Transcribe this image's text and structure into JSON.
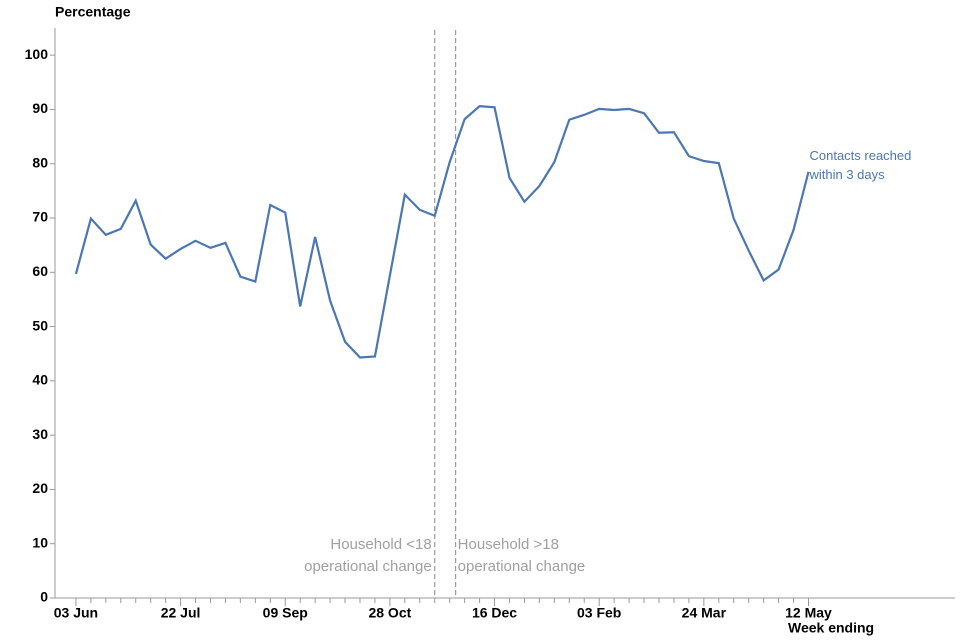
{
  "chart_data": {
    "type": "line",
    "y_label": "Percentage",
    "x_label": "Week ending",
    "categories": [
      "03 Jun",
      null,
      null,
      null,
      null,
      null,
      null,
      "22 Jul",
      null,
      null,
      null,
      null,
      null,
      null,
      "09 Sep",
      null,
      null,
      null,
      null,
      null,
      null,
      "28 Oct",
      null,
      null,
      null,
      null,
      null,
      null,
      "16 Dec",
      null,
      null,
      null,
      null,
      null,
      null,
      "03 Feb",
      null,
      null,
      null,
      null,
      null,
      null,
      "24 Mar",
      null,
      null,
      null,
      null,
      null,
      null,
      "12 May"
    ],
    "series": [
      {
        "name": "Contacts reached within 3 days",
        "color": "#4a77b4",
        "values": [
          59.7,
          69.9,
          66.9,
          68.0,
          73.2,
          65.1,
          62.5,
          64.3,
          65.8,
          64.5,
          65.4,
          59.2,
          58.3,
          72.4,
          71.0,
          53.7,
          66.5,
          54.8,
          47.2,
          44.3,
          44.5,
          59.4,
          74.3,
          71.5,
          70.4,
          80.3,
          88.2,
          90.6,
          90.4,
          77.4,
          73.0,
          75.9,
          80.3,
          88.1,
          89.0,
          90.1,
          89.9,
          90.1,
          89.3,
          85.7,
          85.8,
          81.4,
          80.5,
          80.1,
          69.9,
          64.0,
          58.5,
          60.5,
          67.8,
          78.5
        ]
      }
    ],
    "xlim": [
      -1.4,
      58.8
    ],
    "ylim": [
      0,
      105
    ],
    "yticks": [
      0,
      10,
      20,
      30,
      40,
      50,
      60,
      70,
      80,
      90,
      100
    ],
    "vlines": [
      {
        "x": 24,
        "label": "Household <18 operational change",
        "side": "left"
      },
      {
        "x": 25.4,
        "label": "Household >18 operational change",
        "side": "right"
      }
    ]
  }
}
